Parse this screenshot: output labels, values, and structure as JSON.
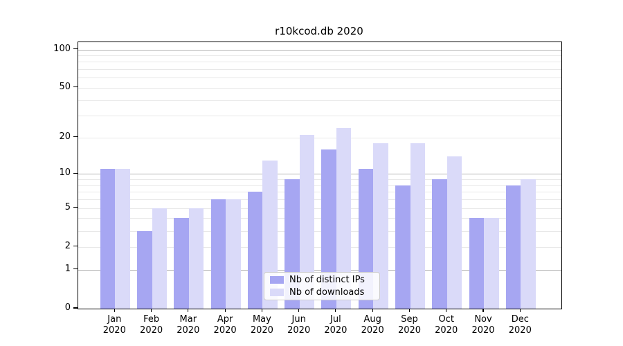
{
  "title": "r10kcod.db 2020",
  "chart_data": {
    "type": "bar",
    "title": "r10kcod.db 2020",
    "categories": [
      "Jan",
      "Feb",
      "Mar",
      "Apr",
      "May",
      "Jun",
      "Jul",
      "Aug",
      "Sep",
      "Oct",
      "Nov",
      "Dec"
    ],
    "category_year": "2020",
    "series": [
      {
        "name": "Nb of distinct IPs",
        "color": "#a6a6f2",
        "values": [
          11,
          3,
          4,
          6,
          7,
          9,
          16,
          11,
          8,
          9,
          4,
          8
        ]
      },
      {
        "name": "Nb of downloads",
        "color": "#dadaf9",
        "values": [
          11,
          5,
          5,
          6,
          13,
          21,
          24,
          18,
          18,
          14,
          4,
          9
        ]
      }
    ],
    "xlabel": "",
    "ylabel": "",
    "yscale": "log1p",
    "ylim": [
      0,
      113.9
    ],
    "yticks": [
      0,
      1,
      2,
      5,
      10,
      20,
      50,
      100
    ],
    "major_gridlines": [
      1,
      10,
      100
    ],
    "minor_gridlines": [
      2,
      3,
      4,
      5,
      6,
      7,
      8,
      9,
      20,
      30,
      40,
      50,
      60,
      70,
      80,
      90
    ],
    "grid": true,
    "legend_position": "lower center"
  },
  "colors": {
    "background": "#ffffff",
    "spine": "#000000",
    "major_grid": "#b4b4b4",
    "minor_grid": "#e8e8e8",
    "bar_distinct_ips": "#a6a6f2",
    "bar_downloads": "#dadaf9",
    "legend_border": "#cccccc",
    "text": "#000000"
  }
}
